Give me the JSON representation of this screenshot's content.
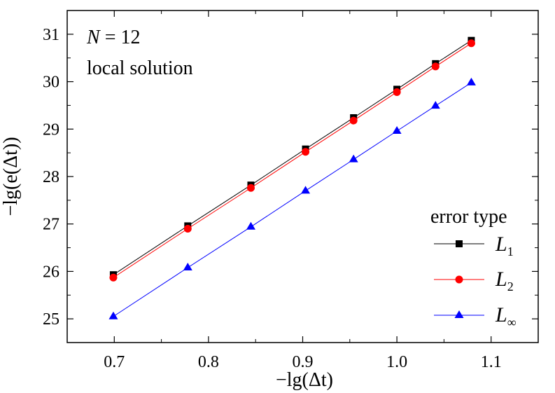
{
  "chart_data": {
    "type": "line",
    "xlabel": "−lg(Δt)",
    "ylabel": "−lg(e(Δt))",
    "xlim": [
      0.65,
      1.15
    ],
    "ylim": [
      24.5,
      31.5
    ],
    "xticks": [
      "0.7",
      "0.8",
      "0.9",
      "1.0",
      "1.1"
    ],
    "xtick_values": [
      0.7,
      0.8,
      0.9,
      1.0,
      1.1
    ],
    "yticks": [
      "25",
      "26",
      "27",
      "28",
      "29",
      "30",
      "31"
    ],
    "ytick_values": [
      25,
      26,
      27,
      28,
      29,
      30,
      31
    ],
    "annotations": {
      "line1_var": "N",
      "line1_rest": " = 12",
      "line2": "local solution"
    },
    "legend": {
      "title": "error type",
      "placement": "bottom-right"
    },
    "x": [
      0.699,
      0.778,
      0.845,
      0.903,
      0.954,
      1.0,
      1.041,
      1.079
    ],
    "series": [
      {
        "name": "L1",
        "label_main": "L",
        "label_sub": "1",
        "color": "#000000",
        "marker": "square",
        "values": [
          25.93,
          26.96,
          27.82,
          28.58,
          29.24,
          29.84,
          30.38,
          30.87
        ]
      },
      {
        "name": "L2",
        "label_main": "L",
        "label_sub": "2",
        "color": "#ff0000",
        "marker": "circle",
        "values": [
          25.87,
          26.9,
          27.76,
          28.52,
          29.18,
          29.78,
          30.32,
          30.81
        ]
      },
      {
        "name": "L∞",
        "label_main": "L",
        "label_sub": "∞",
        "color": "#0000ff",
        "marker": "triangle",
        "values": [
          25.05,
          26.08,
          26.94,
          27.7,
          28.36,
          28.96,
          29.49,
          29.98
        ]
      }
    ]
  }
}
